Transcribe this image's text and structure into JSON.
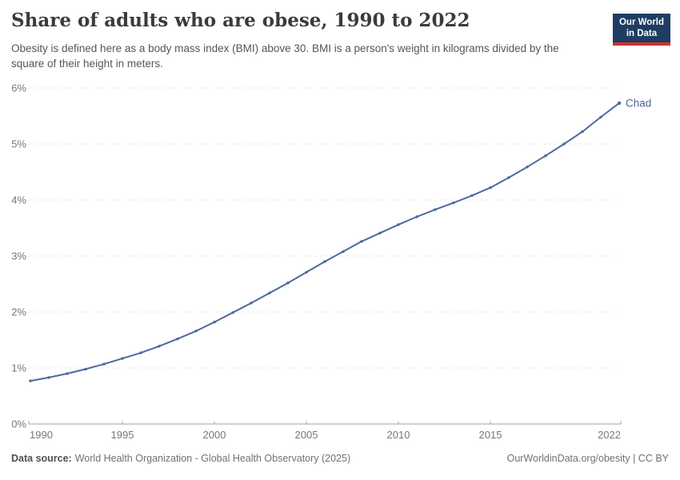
{
  "header": {
    "title": "Share of adults who are obese, 1990 to 2022",
    "subtitle": "Obesity is defined here as a body mass index (BMI) above 30. BMI is a person's weight in kilograms divided by the square of their height in meters.",
    "logo": {
      "line1": "Our World",
      "line2": "in Data",
      "bg_color": "#1d3d63",
      "accent_color": "#d0352c"
    }
  },
  "chart_data": {
    "type": "line",
    "title": "Share of adults who are obese, 1990 to 2022",
    "xlabel": "",
    "ylabel": "",
    "xlim": [
      1990,
      2022
    ],
    "ylim": [
      0,
      6
    ],
    "grid": "horizontal-dashed",
    "legend_position": "end-of-line-label",
    "xticks": [
      1990,
      1995,
      2000,
      2005,
      2010,
      2015,
      2022
    ],
    "yticks": [
      "0%",
      "1%",
      "2%",
      "3%",
      "4%",
      "5%",
      "6%"
    ],
    "series": [
      {
        "name": "Chad",
        "color": "#4c6a9c",
        "x": [
          1990,
          1991,
          1992,
          1993,
          1994,
          1995,
          1996,
          1997,
          1998,
          1999,
          2000,
          2001,
          2002,
          2003,
          2004,
          2005,
          2006,
          2007,
          2008,
          2009,
          2010,
          2011,
          2012,
          2013,
          2014,
          2015,
          2016,
          2017,
          2018,
          2019,
          2020,
          2021,
          2022
        ],
        "values": [
          0.77,
          0.83,
          0.9,
          0.98,
          1.07,
          1.17,
          1.27,
          1.39,
          1.52,
          1.66,
          1.82,
          1.99,
          2.16,
          2.34,
          2.52,
          2.71,
          2.9,
          3.08,
          3.26,
          3.41,
          3.56,
          3.7,
          3.83,
          3.95,
          4.08,
          4.22,
          4.4,
          4.59,
          4.79,
          5.0,
          5.22,
          5.48,
          5.73
        ]
      }
    ]
  },
  "footer": {
    "datasource_label": "Data source:",
    "datasource_value": "World Health Organization - Global Health Observatory (2025)",
    "url": "OurWorldinData.org/obesity | CC BY"
  },
  "colors": {
    "line": "#4c6a9c",
    "grid": "#e0e0e0",
    "axis": "#a3a3a3",
    "tick_text": "#777777",
    "title_text": "#3b3b3b"
  }
}
